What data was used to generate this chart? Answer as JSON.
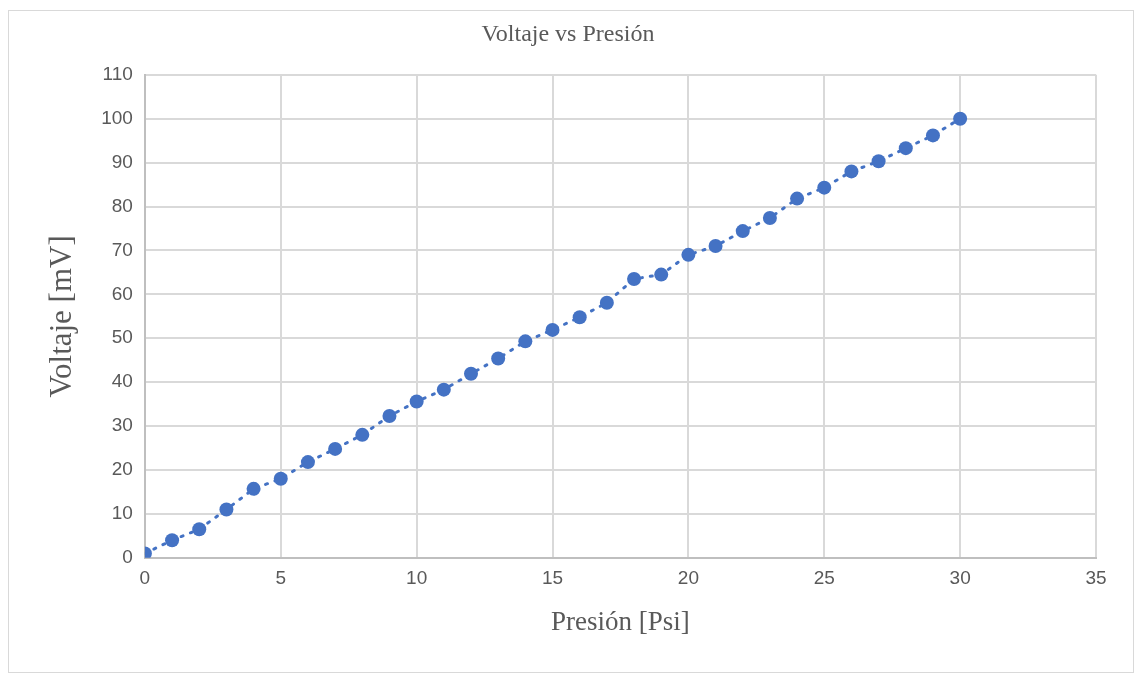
{
  "chart_data": {
    "type": "line",
    "title": "Voltaje vs Presión",
    "xlabel": "Presión [Psi]",
    "ylabel": "Voltaje [mV]",
    "x": [
      0,
      1,
      2,
      3,
      4,
      5,
      6,
      7,
      8,
      9,
      10,
      11,
      12,
      13,
      14,
      15,
      16,
      17,
      18,
      19,
      20,
      21,
      22,
      23,
      24,
      25,
      26,
      27,
      28,
      29,
      30
    ],
    "series": [
      {
        "color": "#4472c4",
        "values": [
          1,
          4,
          6.5,
          11,
          15.7,
          18,
          21.8,
          24.8,
          28,
          32.3,
          35.6,
          38.3,
          41.9,
          45.4,
          49.3,
          51.9,
          54.8,
          58.1,
          63.5,
          64.5,
          69,
          71,
          74.4,
          77.4,
          81.8,
          84.3,
          88,
          90.3,
          93.3,
          96.2,
          100
        ]
      }
    ],
    "xlim": [
      0,
      35
    ],
    "xticks": [
      0,
      5,
      10,
      15,
      20,
      25,
      30,
      35
    ],
    "ylim": [
      0,
      110
    ],
    "yticks": [
      0,
      10,
      20,
      30,
      40,
      50,
      60,
      70,
      80,
      90,
      100,
      110
    ],
    "grid": true,
    "legend": false,
    "marker": "circle",
    "line_style": "dotted"
  }
}
